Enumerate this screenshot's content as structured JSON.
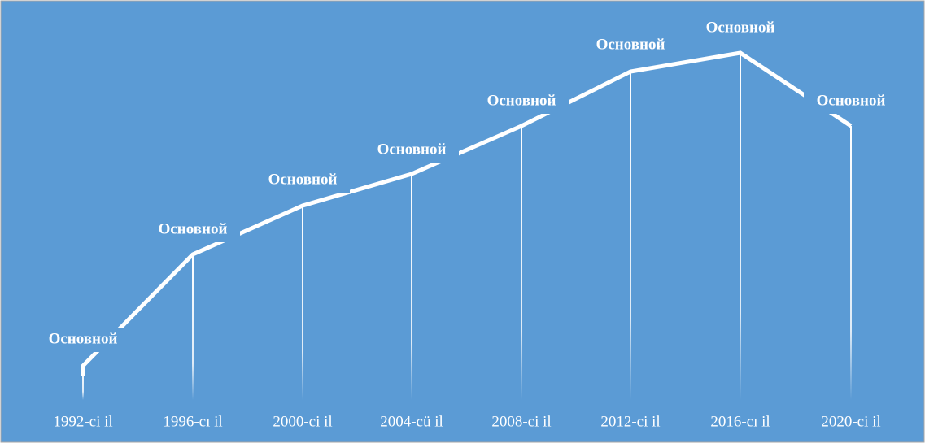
{
  "nodes": [
    {
      "label": "Основной",
      "year": "1992-ci il"
    },
    {
      "label": "Основной",
      "year": "1996-cı il"
    },
    {
      "label": "Основной",
      "year": "2000-ci il"
    },
    {
      "label": "Основной",
      "year": "2004-cü il"
    },
    {
      "label": "Основной",
      "year": "2008-ci il"
    },
    {
      "label": "Основной",
      "year": "2012-ci il"
    },
    {
      "label": "Основной",
      "year": "2016-cı il"
    },
    {
      "label": "Основной",
      "year": "2020-ci il"
    }
  ]
}
